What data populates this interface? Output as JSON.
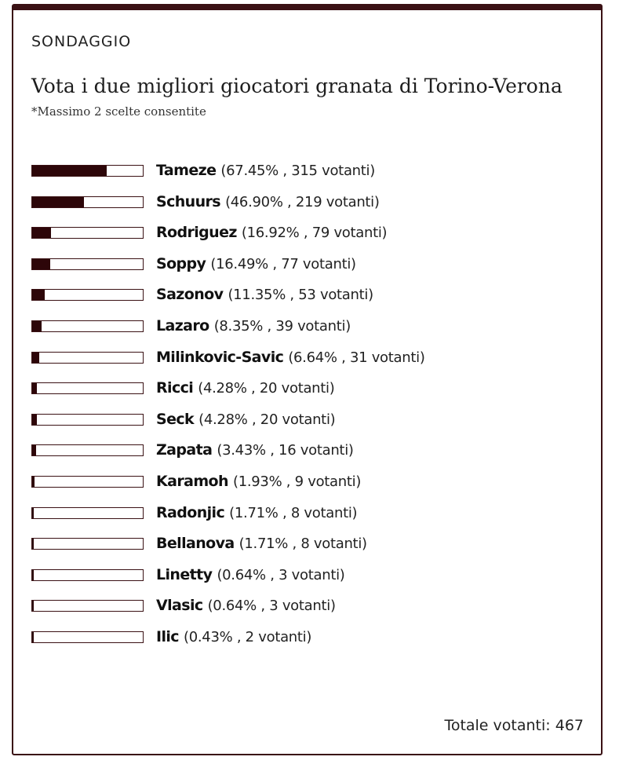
{
  "poll": {
    "label": "SONDAGGIO",
    "question": "Vota i due migliori giocatori granata di Torino-Verona",
    "note": "*Massimo 2 scelte consentite",
    "total_prefix": "Totale votanti:",
    "total_votes": "467",
    "accent_color": "#2d0609",
    "options": [
      {
        "name": "Tameze",
        "stats": "(67.45% , 315 votanti)",
        "percent": 67.45
      },
      {
        "name": "Schuurs",
        "stats": "(46.90% , 219 votanti)",
        "percent": 46.9
      },
      {
        "name": "Rodriguez",
        "stats": "(16.92% , 79 votanti)",
        "percent": 16.92
      },
      {
        "name": "Soppy",
        "stats": "(16.49% , 77 votanti)",
        "percent": 16.49
      },
      {
        "name": "Sazonov",
        "stats": "(11.35% , 53 votanti)",
        "percent": 11.35
      },
      {
        "name": "Lazaro",
        "stats": "(8.35% , 39 votanti)",
        "percent": 8.35
      },
      {
        "name": "Milinkovic-Savic",
        "stats": "(6.64% , 31 votanti)",
        "percent": 6.64
      },
      {
        "name": "Ricci",
        "stats": "(4.28% , 20 votanti)",
        "percent": 4.28
      },
      {
        "name": "Seck",
        "stats": "(4.28% , 20 votanti)",
        "percent": 4.28
      },
      {
        "name": "Zapata",
        "stats": "(3.43% , 16 votanti)",
        "percent": 3.43
      },
      {
        "name": "Karamoh",
        "stats": "(1.93% , 9 votanti)",
        "percent": 1.93
      },
      {
        "name": "Radonjic",
        "stats": "(1.71% , 8 votanti)",
        "percent": 1.71
      },
      {
        "name": "Bellanova",
        "stats": "(1.71% , 8 votanti)",
        "percent": 1.71
      },
      {
        "name": "Linetty",
        "stats": "(0.64% , 3 votanti)",
        "percent": 0.64
      },
      {
        "name": "Vlasic",
        "stats": "(0.64% , 3 votanti)",
        "percent": 0.64
      },
      {
        "name": "Ilic",
        "stats": "(0.43% , 2 votanti)",
        "percent": 0.43
      }
    ]
  }
}
